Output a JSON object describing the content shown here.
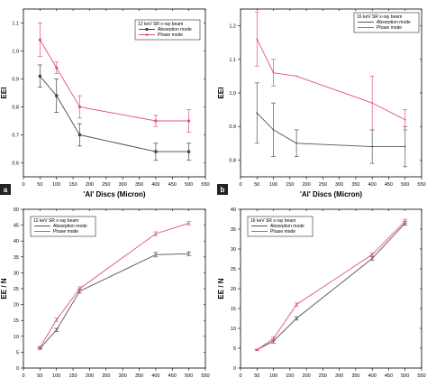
{
  "chart_data": [
    {
      "type": "line",
      "panel_label": "a",
      "xlabel": "'Al' Discs (Micron)",
      "ylabel": "EEI",
      "xlim": [
        0,
        550
      ],
      "ylim": [
        0.55,
        1.15
      ],
      "xticks": [
        0,
        50,
        100,
        150,
        200,
        250,
        300,
        350,
        400,
        450,
        500,
        550
      ],
      "yticks": [
        0.6,
        0.7,
        0.8,
        0.9,
        1.0,
        1.1
      ],
      "yticks_text": [
        "0.6",
        "0.7",
        "0.8",
        "0.9",
        "1.0",
        "1.1"
      ],
      "legend_title": "12 keV SR x-ray beam",
      "legend_position": "top-right",
      "x": [
        50,
        100,
        170,
        400,
        500
      ],
      "series": [
        {
          "name": "Absorption mode",
          "color": "#444444",
          "marker": "square",
          "values": [
            0.91,
            0.84,
            0.7,
            0.64,
            0.64
          ],
          "errors": [
            0.04,
            0.06,
            0.04,
            0.03,
            0.03
          ]
        },
        {
          "name": "Phase mode",
          "color": "#e0508a",
          "marker": "circle",
          "values": [
            1.04,
            0.94,
            0.8,
            0.75,
            0.75
          ],
          "errors": [
            0.06,
            0.02,
            0.04,
            0.02,
            0.04
          ]
        }
      ]
    },
    {
      "type": "line",
      "panel_label": "b",
      "xlabel": "'Al' Discs (Micron)",
      "ylabel": "EEI",
      "xlim": [
        0,
        550
      ],
      "ylim": [
        0.75,
        1.25
      ],
      "xticks": [
        0,
        50,
        100,
        150,
        200,
        250,
        300,
        350,
        400,
        450,
        500,
        550
      ],
      "yticks": [
        0.8,
        0.9,
        1.0,
        1.1,
        1.2
      ],
      "yticks_text": [
        "0.8",
        "0.9",
        "1.0",
        "1.1",
        "1.2"
      ],
      "legend_title": "16 keV SR x-ray beam",
      "legend_position": "top-right",
      "x": [
        50,
        100,
        170,
        400,
        500
      ],
      "series": [
        {
          "name": "Absorption mode",
          "color": "#555555",
          "marker": "none",
          "values": [
            0.94,
            0.89,
            0.85,
            0.84,
            0.84
          ],
          "errors": [
            0.09,
            0.08,
            0.04,
            0.05,
            0.06
          ]
        },
        {
          "name": "Phase mode",
          "color": "#e0508a",
          "marker": "none",
          "values": [
            1.16,
            1.06,
            1.05,
            0.97,
            0.92
          ],
          "errors": [
            0.08,
            0.04,
            0.0,
            0.08,
            0.03
          ]
        }
      ]
    },
    {
      "type": "line",
      "panel_label": "",
      "xlabel": "",
      "ylabel": "EE / N",
      "xlim": [
        0,
        550
      ],
      "ylim": [
        0,
        50
      ],
      "xticks": [
        0,
        50,
        100,
        150,
        200,
        250,
        300,
        350,
        400,
        450,
        500,
        550
      ],
      "yticks": [
        0,
        5,
        10,
        15,
        20,
        25,
        30,
        35,
        40,
        45,
        50
      ],
      "yticks_text": [
        "0",
        "5",
        "10",
        "15",
        "20",
        "25",
        "30",
        "35",
        "40",
        "45",
        "50"
      ],
      "legend_title": "12 keV SR x-ray beam",
      "legend_position": "top-left",
      "x": [
        50,
        100,
        170,
        400,
        500
      ],
      "series": [
        {
          "name": "Absorption mode",
          "color": "#555555",
          "marker": "none",
          "values": [
            6.2,
            12.0,
            24.2,
            35.7,
            36.0
          ],
          "errors": [
            0.3,
            0.5,
            0.6,
            0.7,
            0.6
          ]
        },
        {
          "name": "Phase mode",
          "color": "#e0508a",
          "marker": "none",
          "values": [
            6.5,
            15.2,
            25.0,
            42.3,
            45.6
          ],
          "errors": [
            0.3,
            0.5,
            0.6,
            0.6,
            0.5
          ]
        }
      ]
    },
    {
      "type": "line",
      "panel_label": "",
      "xlabel": "",
      "ylabel": "EE / N",
      "xlim": [
        0,
        550
      ],
      "ylim": [
        0,
        40
      ],
      "xticks": [
        0,
        50,
        100,
        150,
        200,
        250,
        300,
        350,
        400,
        450,
        500,
        550
      ],
      "yticks": [
        0,
        5,
        10,
        15,
        20,
        25,
        30,
        35,
        40
      ],
      "yticks_text": [
        "0",
        "5",
        "10",
        "15",
        "20",
        "25",
        "30",
        "35",
        "40"
      ],
      "legend_title": "16 keV SR x-ray beam",
      "legend_position": "top-left",
      "x": [
        50,
        100,
        170,
        400,
        500
      ],
      "series": [
        {
          "name": "Absorption mode",
          "color": "#555555",
          "marker": "none",
          "values": [
            4.6,
            6.8,
            12.5,
            27.6,
            36.5
          ],
          "errors": [
            0.2,
            0.5,
            0.4,
            0.4,
            0.5
          ]
        },
        {
          "name": "Phase mode",
          "color": "#e0508a",
          "marker": "none",
          "values": [
            4.6,
            7.4,
            16.0,
            28.6,
            37.0
          ],
          "errors": [
            0.2,
            0.5,
            0.4,
            0.4,
            0.5
          ]
        }
      ]
    }
  ]
}
